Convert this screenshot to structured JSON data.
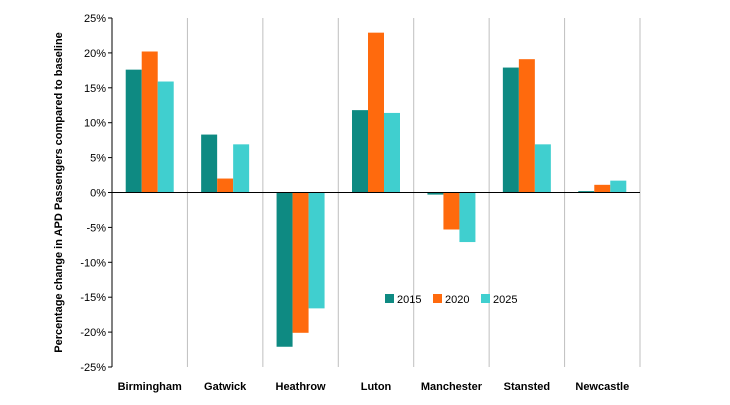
{
  "chart_data": {
    "type": "bar",
    "title": "",
    "xlabel": "",
    "ylabel": "Percentage change in APD Passengers compared to baseline",
    "categories": [
      "Birmingham",
      "Gatwick",
      "Heathrow",
      "Luton",
      "Manchester",
      "Stansted",
      "Newcastle"
    ],
    "series": [
      {
        "name": "2015",
        "color": "#0e8a82",
        "values": [
          17.6,
          8.3,
          -22.1,
          11.8,
          -0.3,
          17.9,
          0.2
        ]
      },
      {
        "name": "2020",
        "color": "#ff6a0d",
        "values": [
          20.2,
          2.0,
          -20.1,
          22.9,
          -5.3,
          19.1,
          1.1
        ]
      },
      {
        "name": "2025",
        "color": "#40cfcf",
        "values": [
          15.9,
          6.9,
          -16.6,
          11.4,
          -7.1,
          6.9,
          1.7
        ]
      }
    ],
    "ylim": [
      -25,
      25
    ],
    "ytick_step": 5,
    "ytick_labels": [
      "-25%",
      "-20%",
      "-15%",
      "-10%",
      "-5%",
      "0%",
      "5%",
      "10%",
      "15%",
      "20%",
      "25%"
    ],
    "grid": "vertical category separators",
    "legend": "inside, lower-right of center"
  }
}
